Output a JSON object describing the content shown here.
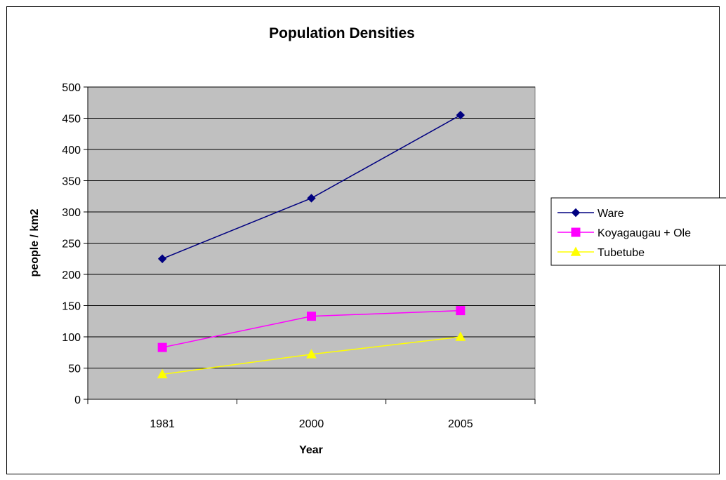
{
  "chart_data": {
    "type": "line",
    "title": "Population Densities",
    "xlabel": "Year",
    "ylabel": "people / km2",
    "categories": [
      "1981",
      "2000",
      "2005"
    ],
    "ylim": [
      0,
      500
    ],
    "yticks": [
      0,
      50,
      100,
      150,
      200,
      250,
      300,
      350,
      400,
      450,
      500
    ],
    "grid": true,
    "legend_position": "right",
    "plot_background": "#C0C0C0",
    "series": [
      {
        "name": "Ware",
        "values": [
          225,
          322,
          455
        ],
        "color": "#000080",
        "marker": "diamond"
      },
      {
        "name": "Koyagaugau + Ole",
        "values": [
          83,
          133,
          142
        ],
        "color": "#FF00FF",
        "marker": "square"
      },
      {
        "name": "Tubetube",
        "values": [
          40,
          72,
          100
        ],
        "color": "#FFFF00",
        "marker": "triangle"
      }
    ]
  }
}
